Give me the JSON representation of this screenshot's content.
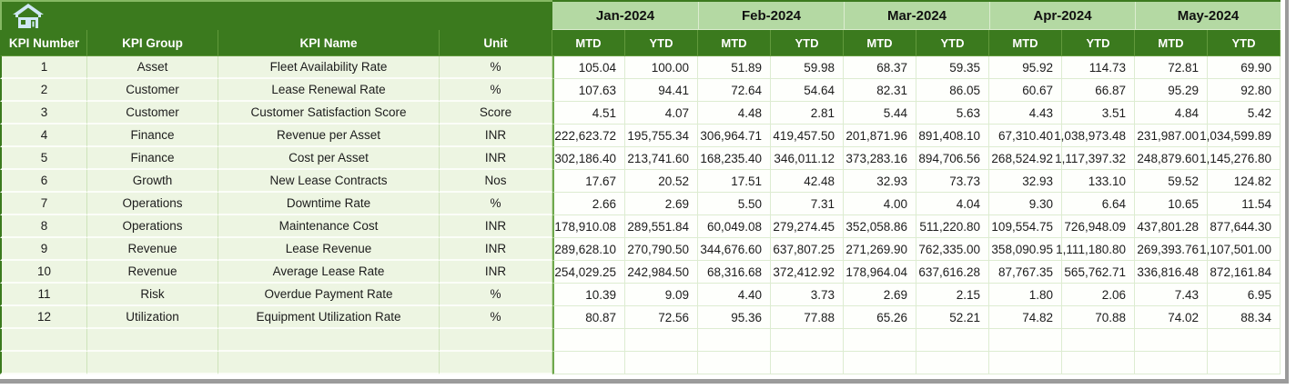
{
  "toolbar": {
    "home_icon": "home"
  },
  "table": {
    "fixed_columns": [
      "KPI Number",
      "KPI Group",
      "KPI Name",
      "Unit"
    ],
    "months": [
      "Jan-2024",
      "Feb-2024",
      "Mar-2024",
      "Apr-2024",
      "May-2024"
    ],
    "period_labels": [
      "MTD",
      "YTD"
    ],
    "rows": [
      {
        "kpi_number": "1",
        "kpi_group": "Asset",
        "kpi_name": "Fleet Availability Rate",
        "unit": "%",
        "values": [
          "105.04",
          "100.00",
          "51.89",
          "59.98",
          "68.37",
          "59.35",
          "95.92",
          "114.73",
          "72.81",
          "69.90"
        ]
      },
      {
        "kpi_number": "2",
        "kpi_group": "Customer",
        "kpi_name": "Lease Renewal Rate",
        "unit": "%",
        "values": [
          "107.63",
          "94.41",
          "72.64",
          "54.64",
          "82.31",
          "86.05",
          "60.67",
          "66.87",
          "95.29",
          "92.80"
        ]
      },
      {
        "kpi_number": "3",
        "kpi_group": "Customer",
        "kpi_name": "Customer Satisfaction Score",
        "unit": "Score",
        "values": [
          "4.51",
          "4.07",
          "4.48",
          "2.81",
          "5.44",
          "5.63",
          "4.43",
          "3.51",
          "4.84",
          "5.42"
        ]
      },
      {
        "kpi_number": "4",
        "kpi_group": "Finance",
        "kpi_name": "Revenue per Asset",
        "unit": "INR",
        "values": [
          "222,623.72",
          "195,755.34",
          "306,964.71",
          "419,457.50",
          "201,871.96",
          "891,408.10",
          "67,310.40",
          "1,038,973.48",
          "231,987.00",
          "1,034,599.89"
        ]
      },
      {
        "kpi_number": "5",
        "kpi_group": "Finance",
        "kpi_name": "Cost per Asset",
        "unit": "INR",
        "values": [
          "302,186.40",
          "213,741.60",
          "168,235.40",
          "346,011.12",
          "373,283.16",
          "894,706.56",
          "268,524.92",
          "1,117,397.32",
          "248,879.60",
          "1,145,276.80"
        ]
      },
      {
        "kpi_number": "6",
        "kpi_group": "Growth",
        "kpi_name": "New Lease Contracts",
        "unit": "Nos",
        "values": [
          "17.67",
          "20.52",
          "17.51",
          "42.48",
          "32.93",
          "73.73",
          "32.93",
          "133.10",
          "59.52",
          "124.82"
        ]
      },
      {
        "kpi_number": "7",
        "kpi_group": "Operations",
        "kpi_name": "Downtime Rate",
        "unit": "%",
        "values": [
          "2.66",
          "2.69",
          "5.50",
          "7.31",
          "4.00",
          "4.04",
          "9.30",
          "6.64",
          "10.65",
          "11.54"
        ]
      },
      {
        "kpi_number": "8",
        "kpi_group": "Operations",
        "kpi_name": "Maintenance Cost",
        "unit": "INR",
        "values": [
          "178,910.08",
          "289,551.84",
          "60,049.08",
          "279,274.45",
          "352,058.86",
          "511,220.80",
          "109,554.75",
          "726,948.09",
          "437,801.28",
          "877,644.30"
        ]
      },
      {
        "kpi_number": "9",
        "kpi_group": "Revenue",
        "kpi_name": "Lease Revenue",
        "unit": "INR",
        "values": [
          "289,628.10",
          "270,790.50",
          "344,676.60",
          "637,807.25",
          "271,269.90",
          "762,335.00",
          "358,090.95",
          "1,111,180.80",
          "269,393.76",
          "1,107,501.00"
        ]
      },
      {
        "kpi_number": "10",
        "kpi_group": "Revenue",
        "kpi_name": "Average Lease Rate",
        "unit": "INR",
        "values": [
          "254,029.25",
          "242,984.50",
          "68,316.68",
          "372,412.92",
          "178,964.04",
          "637,616.28",
          "87,767.35",
          "565,762.71",
          "336,816.48",
          "872,161.84"
        ]
      },
      {
        "kpi_number": "11",
        "kpi_group": "Risk",
        "kpi_name": "Overdue Payment Rate",
        "unit": "%",
        "values": [
          "10.39",
          "9.09",
          "4.40",
          "3.73",
          "2.69",
          "2.15",
          "1.80",
          "2.06",
          "7.43",
          "6.95"
        ]
      },
      {
        "kpi_number": "12",
        "kpi_group": "Utilization",
        "kpi_name": "Equipment Utilization Rate",
        "unit": "%",
        "values": [
          "80.87",
          "72.56",
          "95.36",
          "77.88",
          "65.26",
          "52.21",
          "74.82",
          "70.88",
          "74.02",
          "88.34"
        ]
      }
    ],
    "empty_row_count": 2
  },
  "colors": {
    "dark_green": "#3b7a1e",
    "month_green": "#b4d9a3",
    "leftcell_green": "#edf5e2",
    "separator_green": "#6fa84d",
    "chrome_gray": "#9b9b9b",
    "icon_blue": "#cfe8f6"
  }
}
